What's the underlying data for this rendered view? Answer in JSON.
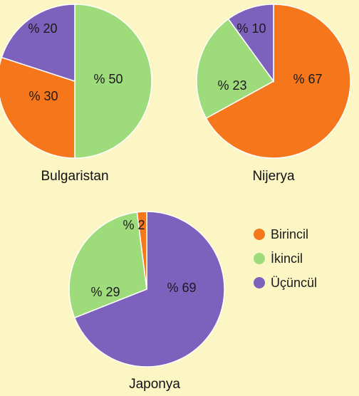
{
  "colors": {
    "Birincil": "#f5761b",
    "İkincil": "#9edb7b",
    "Üçüncül": "#7d62bd",
    "stroke": "#ffffff"
  },
  "chart_data": [
    {
      "type": "pie",
      "title": "Bulgaristan",
      "slices": [
        {
          "category": "Birincil",
          "value": 30,
          "label": "% 30"
        },
        {
          "category": "İkincil",
          "value": 50,
          "label": "% 50"
        },
        {
          "category": "Üçüncül",
          "value": 20,
          "label": "% 20"
        }
      ]
    },
    {
      "type": "pie",
      "title": "Nijerya",
      "slices": [
        {
          "category": "Birincil",
          "value": 67,
          "label": "% 67"
        },
        {
          "category": "İkincil",
          "value": 23,
          "label": "% 23"
        },
        {
          "category": "Üçüncül",
          "value": 10,
          "label": "% 10"
        }
      ]
    },
    {
      "type": "pie",
      "title": "Japonya",
      "slices": [
        {
          "category": "Birincil",
          "value": 2,
          "label": "% 2"
        },
        {
          "category": "İkincil",
          "value": 29,
          "label": "% 29"
        },
        {
          "category": "Üçüncül",
          "value": 69,
          "label": "% 69"
        }
      ]
    }
  ],
  "legend": {
    "placement": "right",
    "items": [
      {
        "category": "Birincil",
        "label": "Birincil"
      },
      {
        "category": "İkincil",
        "label": "İkincil"
      },
      {
        "category": "Üçüncül",
        "label": "Üçüncül"
      }
    ]
  }
}
